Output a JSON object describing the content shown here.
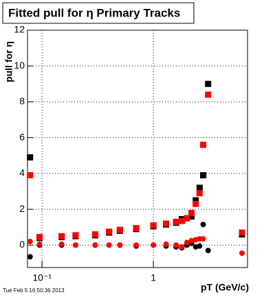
{
  "chart_data": {
    "type": "scatter",
    "title": "Fitted pull for η  Primary Tracks",
    "y_label": "pull for η",
    "x_label": "pT (GeV/c)",
    "footer": "Tue Feb  5 16:50:36 2013",
    "xlog": true,
    "grid": true,
    "x": [
      0.078,
      0.095,
      0.15,
      0.2,
      0.3,
      0.4,
      0.5,
      0.7,
      1.0,
      1.3,
      1.6,
      1.8,
      2.0,
      2.2,
      2.4,
      2.6,
      2.8,
      3.1,
      6.25
    ],
    "series": [
      {
        "color": "#000000",
        "marker": "square",
        "values": [
          4.9,
          0.4,
          0.45,
          0.5,
          0.55,
          0.7,
          0.8,
          0.9,
          1.05,
          1.15,
          1.25,
          1.45,
          1.5,
          1.6,
          2.5,
          3.2,
          3.9,
          9.0,
          0.6
        ]
      },
      {
        "color": "#ff0000",
        "marker": "square",
        "values": [
          3.9,
          0.45,
          0.5,
          0.55,
          0.6,
          0.75,
          0.85,
          0.95,
          1.1,
          1.2,
          1.3,
          1.35,
          1.5,
          1.8,
          2.3,
          2.9,
          5.6,
          8.4,
          0.7
        ]
      },
      {
        "color": "#000000",
        "marker": "circle",
        "values": [
          -0.65,
          0.0,
          0.0,
          0.0,
          0.0,
          0.0,
          0.0,
          -0.05,
          0.0,
          -0.05,
          -0.1,
          -0.15,
          0.0,
          0.1,
          -0.1,
          -0.05,
          1.15,
          -0.3,
          null
        ]
      },
      {
        "color": "#ff0000",
        "marker": "circle",
        "values": [
          0.2,
          0.05,
          0.05,
          0.0,
          0.0,
          0.0,
          0.0,
          0.0,
          0.0,
          0.05,
          0.0,
          -0.1,
          0.15,
          0.25,
          0.3,
          0.35,
          0.35,
          null,
          -0.45
        ]
      }
    ],
    "xlim": [
      0.074,
      7.0
    ],
    "ylim": [
      -1.25,
      12
    ],
    "xticks": [
      {
        "value": 0.1,
        "label": "10⁻¹"
      },
      1
    ],
    "yticks": [
      0,
      2,
      4,
      6,
      8,
      10,
      12
    ]
  }
}
